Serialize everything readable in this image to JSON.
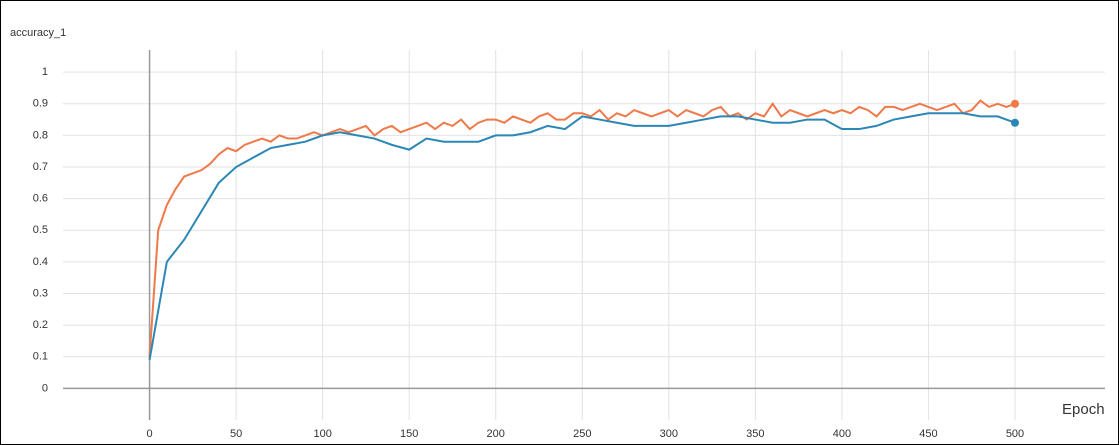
{
  "chart_data": {
    "type": "line",
    "title": "accuracy_1",
    "x_label": "Epoch",
    "xlim": [
      -50,
      552
    ],
    "ylim": [
      -0.1,
      1.07
    ],
    "xticks": [
      0,
      50,
      100,
      150,
      200,
      250,
      300,
      350,
      400,
      450,
      500
    ],
    "yticks": [
      0,
      0.1,
      0.2,
      0.3,
      0.4,
      0.5,
      0.6,
      0.7,
      0.8,
      0.9,
      1
    ],
    "grid": true,
    "series": [
      {
        "color": "#f0794a",
        "x": [
          0,
          5,
          10,
          15,
          20,
          25,
          30,
          35,
          40,
          45,
          50,
          55,
          60,
          65,
          70,
          75,
          80,
          85,
          90,
          95,
          100,
          105,
          110,
          115,
          120,
          125,
          130,
          135,
          140,
          145,
          150,
          155,
          160,
          165,
          170,
          175,
          180,
          185,
          190,
          195,
          200,
          205,
          210,
          215,
          220,
          225,
          230,
          235,
          240,
          245,
          250,
          255,
          260,
          265,
          270,
          275,
          280,
          285,
          290,
          295,
          300,
          305,
          310,
          315,
          320,
          325,
          330,
          335,
          340,
          345,
          350,
          355,
          360,
          365,
          370,
          375,
          380,
          385,
          390,
          395,
          400,
          405,
          410,
          415,
          420,
          425,
          430,
          435,
          440,
          445,
          450,
          455,
          460,
          465,
          470,
          475,
          480,
          485,
          490,
          495,
          500
        ],
        "values": [
          0.1,
          0.5,
          0.58,
          0.63,
          0.67,
          0.68,
          0.69,
          0.71,
          0.74,
          0.76,
          0.75,
          0.77,
          0.78,
          0.79,
          0.78,
          0.8,
          0.79,
          0.79,
          0.8,
          0.81,
          0.8,
          0.81,
          0.82,
          0.81,
          0.82,
          0.83,
          0.8,
          0.82,
          0.83,
          0.81,
          0.82,
          0.83,
          0.84,
          0.82,
          0.84,
          0.83,
          0.85,
          0.82,
          0.84,
          0.85,
          0.85,
          0.84,
          0.86,
          0.85,
          0.84,
          0.86,
          0.87,
          0.85,
          0.85,
          0.87,
          0.87,
          0.86,
          0.88,
          0.85,
          0.87,
          0.86,
          0.88,
          0.87,
          0.86,
          0.87,
          0.88,
          0.86,
          0.88,
          0.87,
          0.86,
          0.88,
          0.89,
          0.86,
          0.87,
          0.85,
          0.87,
          0.86,
          0.9,
          0.86,
          0.88,
          0.87,
          0.86,
          0.87,
          0.88,
          0.87,
          0.88,
          0.87,
          0.89,
          0.88,
          0.86,
          0.89,
          0.89,
          0.88,
          0.89,
          0.9,
          0.89,
          0.88,
          0.89,
          0.9,
          0.87,
          0.88,
          0.91,
          0.89,
          0.9,
          0.89,
          0.9
        ]
      },
      {
        "color": "#2b87b5",
        "x": [
          0,
          10,
          20,
          30,
          40,
          50,
          60,
          70,
          80,
          90,
          100,
          110,
          120,
          130,
          140,
          150,
          160,
          170,
          180,
          190,
          200,
          210,
          220,
          230,
          240,
          250,
          260,
          270,
          280,
          290,
          300,
          310,
          320,
          330,
          340,
          350,
          360,
          370,
          380,
          390,
          400,
          410,
          420,
          430,
          440,
          450,
          460,
          470,
          480,
          490,
          500
        ],
        "values": [
          0.09,
          0.4,
          0.47,
          0.56,
          0.65,
          0.7,
          0.73,
          0.76,
          0.77,
          0.78,
          0.8,
          0.81,
          0.8,
          0.79,
          0.77,
          0.755,
          0.79,
          0.78,
          0.78,
          0.78,
          0.8,
          0.8,
          0.81,
          0.83,
          0.82,
          0.86,
          0.85,
          0.84,
          0.83,
          0.83,
          0.83,
          0.84,
          0.85,
          0.86,
          0.86,
          0.85,
          0.84,
          0.84,
          0.85,
          0.85,
          0.82,
          0.82,
          0.83,
          0.85,
          0.86,
          0.87,
          0.87,
          0.87,
          0.86,
          0.86,
          0.84
        ]
      }
    ]
  }
}
